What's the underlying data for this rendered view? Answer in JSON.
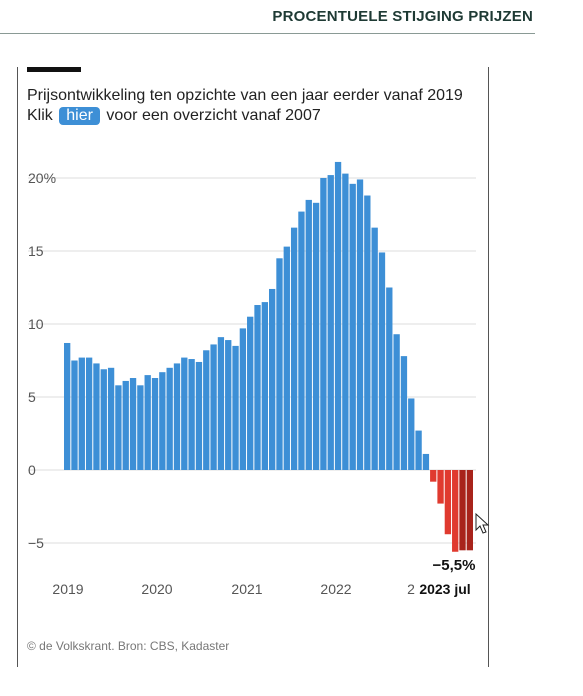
{
  "header": {
    "title": "PROCENTUELE STIJGING PRIJZEN"
  },
  "subtitle": "Prijsontwikkeling ten opzichte van een jaar eerder vanaf 2019",
  "link_line": {
    "prefix": "Klik",
    "link_label": "hier",
    "suffix": "voor een overzicht vanaf 2007"
  },
  "footer": "© de Volkskrant. Bron: CBS, Kadaster",
  "colors": {
    "positive": "#3d8fd6",
    "negative": "#e03a2f",
    "negative_last": "#a8231b",
    "grid": "#dddddd"
  },
  "chart_data": {
    "type": "bar",
    "title": "",
    "ylim": [
      -6.5,
      22
    ],
    "y_ticks": [
      {
        "value": 20,
        "label": "20%"
      },
      {
        "value": 15,
        "label": "15"
      },
      {
        "value": 10,
        "label": "10"
      },
      {
        "value": 5,
        "label": "5"
      },
      {
        "value": 0,
        "label": "0"
      },
      {
        "value": -5,
        "label": "−5"
      }
    ],
    "x_tick_labels": [
      "2019",
      "2020",
      "2021",
      "2022",
      "2",
      "2023 jul"
    ],
    "annotation": "−5,5%",
    "grid": true,
    "values": [
      8.7,
      7.5,
      7.7,
      7.7,
      7.3,
      6.9,
      7.0,
      5.8,
      6.1,
      6.3,
      5.8,
      6.5,
      6.3,
      6.7,
      7.0,
      7.3,
      7.7,
      7.6,
      7.4,
      8.2,
      8.6,
      9.1,
      8.9,
      8.5,
      9.7,
      10.5,
      11.3,
      11.5,
      12.4,
      14.5,
      15.3,
      16.6,
      17.7,
      18.5,
      18.3,
      20.0,
      20.2,
      21.1,
      20.3,
      19.6,
      19.9,
      18.8,
      16.6,
      14.9,
      12.5,
      9.3,
      7.8,
      4.9,
      2.7,
      1.1,
      -0.8,
      -2.3,
      -4.4,
      -5.6,
      -5.5,
      -5.5
    ]
  }
}
